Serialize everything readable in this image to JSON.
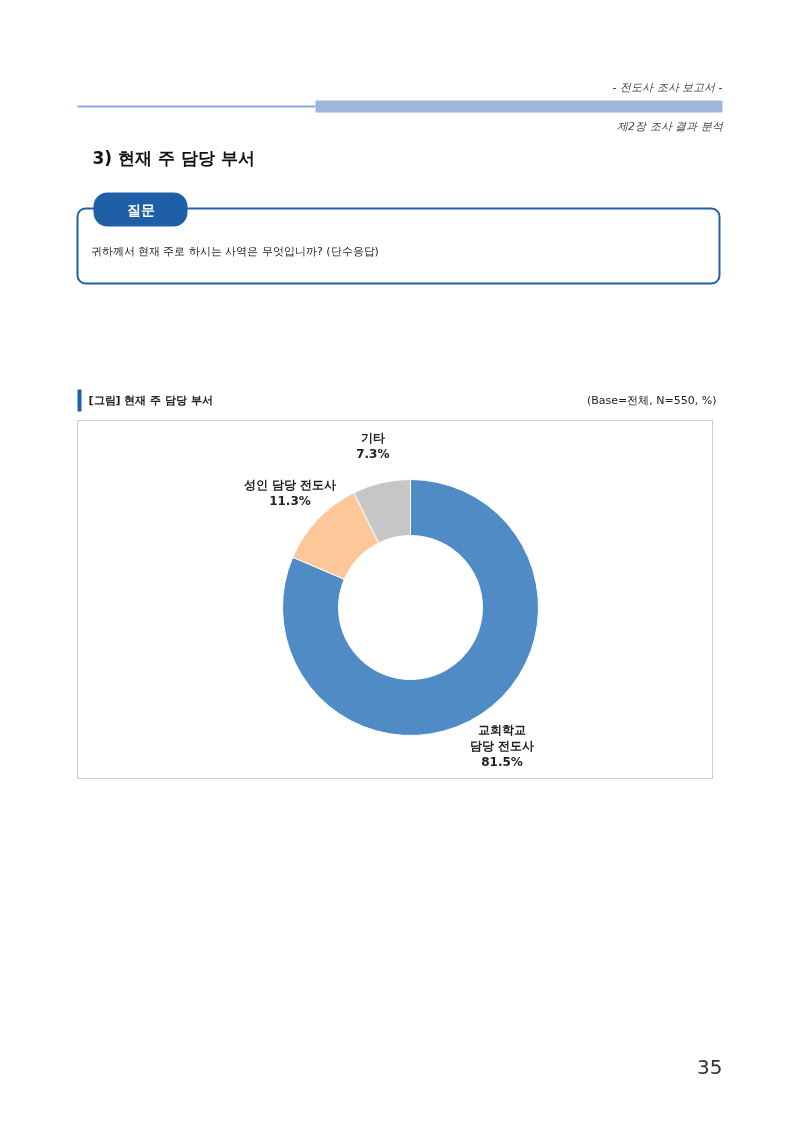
{
  "chart_data": {
    "type": "donut",
    "title": "[그림] 현재 주 담당 부서",
    "subtitle": "(Base=전체, N=550, %)",
    "categories": [
      "교회학교\n담당 전도사",
      "성인 담당 전도사",
      "기타"
    ],
    "values": [
      81.5,
      11.3,
      7.3
    ],
    "value_labels": [
      "81.5%",
      "11.3%",
      "7.3%"
    ],
    "colors": [
      "#4f8bc4",
      "#fdc79a",
      "#c6c6c6"
    ],
    "annotations": [
      "- 전도사 조사 보고서 -",
      "제2장 조사 결과 분석",
      "3) 현재 주 담당 부서",
      "질문",
      "귀하께서 현재 주로 하시는 사역은 무엇입니까? (단수응답)",
      "35"
    ]
  }
}
